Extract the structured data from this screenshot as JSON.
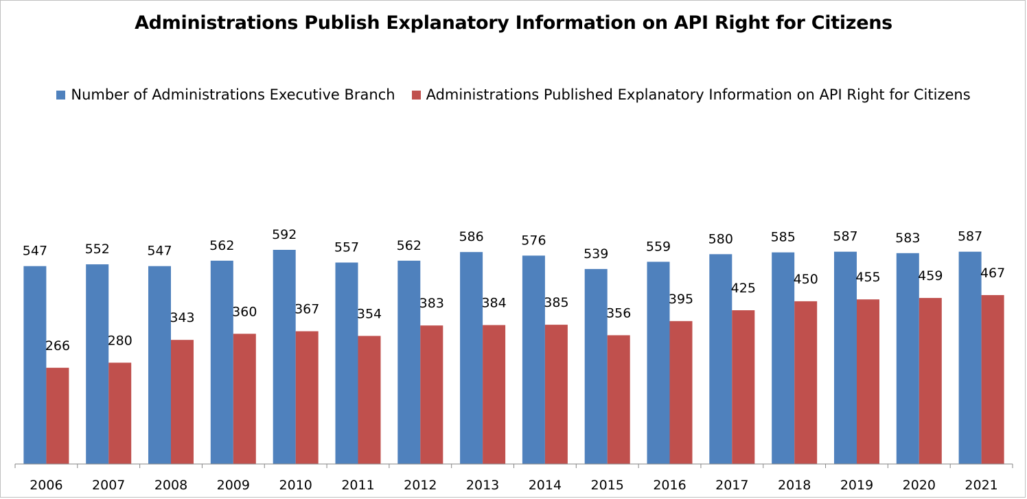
{
  "chart_data": {
    "type": "bar",
    "title": "Administrations Publish Explanatory Information on API Right for Citizens",
    "categories": [
      "2006",
      "2007",
      "2008",
      "2009",
      "2010",
      "2011",
      "2012",
      "2013",
      "2014",
      "2015",
      "2016",
      "2017",
      "2018",
      "2019",
      "2020",
      "2021"
    ],
    "series": [
      {
        "name": "Number of Administrations Executive Branch",
        "color": "#4f81bd",
        "values": [
          547,
          552,
          547,
          562,
          592,
          557,
          562,
          586,
          576,
          539,
          559,
          580,
          585,
          587,
          583,
          587
        ]
      },
      {
        "name": "Administrations Published Explanatory Information on API Right for Citizens",
        "color": "#c0504d",
        "values": [
          266,
          280,
          343,
          360,
          367,
          354,
          383,
          384,
          385,
          356,
          395,
          425,
          450,
          455,
          459,
          467
        ]
      }
    ],
    "xlabel": "",
    "ylabel": "",
    "ylim": [
      0,
      600
    ],
    "legend_position": "top",
    "grid": false
  }
}
